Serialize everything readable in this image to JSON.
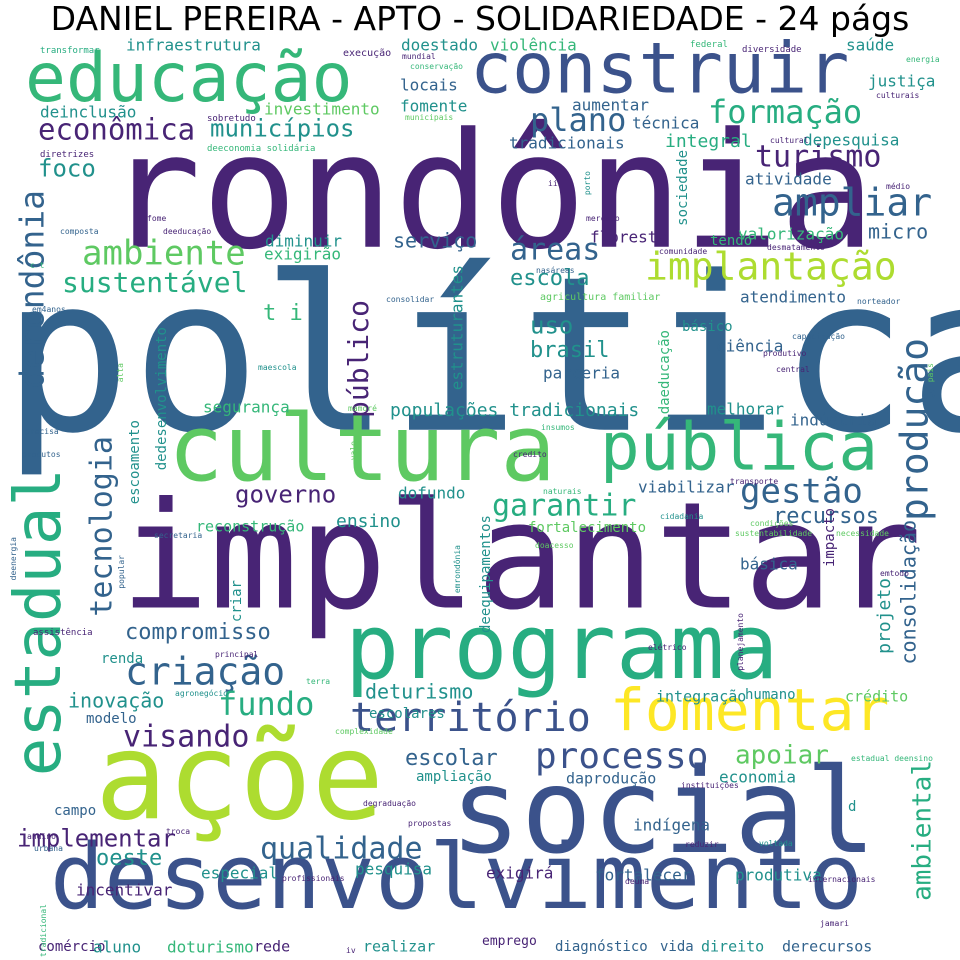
{
  "title": "DANIEL PEREIRA - APTO - SOLIDARIEDADE - 24 págs",
  "palette": {
    "dark_purple": "#482475",
    "indigo": "#3b528b",
    "blue": "#33638d",
    "teal": "#21918c",
    "green_teal": "#27ad81",
    "green": "#35b779",
    "light_green": "#5ec962",
    "lime": "#addc30",
    "yellow": "#fde725"
  },
  "words": [
    {
      "text": "política",
      "color": "blue"
    },
    {
      "text": "rondônia",
      "color": "dark_purple"
    },
    {
      "text": "implantar",
      "color": "dark_purple"
    },
    {
      "text": "açõe",
      "color": "lime"
    },
    {
      "text": "social",
      "color": "indigo"
    },
    {
      "text": "desenvolvimento",
      "color": "indigo"
    },
    {
      "text": "cultura",
      "color": "light_green"
    },
    {
      "text": "programa",
      "color": "green_teal"
    },
    {
      "text": "construir",
      "color": "indigo"
    },
    {
      "text": "educação",
      "color": "green"
    },
    {
      "text": "pública",
      "color": "green"
    },
    {
      "text": "estadual",
      "color": "green_teal"
    },
    {
      "text": "fomentar",
      "color": "yellow"
    },
    {
      "text": "implantação",
      "color": "lime"
    },
    {
      "text": "produção",
      "color": "blue"
    },
    {
      "text": "território",
      "color": "indigo"
    },
    {
      "text": "criação",
      "color": "blue"
    },
    {
      "text": "ampliar",
      "color": "blue"
    },
    {
      "text": "derondônia",
      "color": "blue"
    },
    {
      "text": "processo",
      "color": "indigo"
    },
    {
      "text": "formação",
      "color": "green_teal"
    },
    {
      "text": "ambiente",
      "color": "light_green"
    },
    {
      "text": "econômica",
      "color": "dark_purple"
    },
    {
      "text": "plano",
      "color": "blue"
    },
    {
      "text": "turismo",
      "color": "dark_purple"
    },
    {
      "text": "gestão",
      "color": "blue"
    },
    {
      "text": "sustentável",
      "color": "green_teal"
    },
    {
      "text": "áreas",
      "color": "blue"
    },
    {
      "text": "garantir",
      "color": "green_teal"
    },
    {
      "text": "tecnologia",
      "color": "blue"
    },
    {
      "text": "público",
      "color": "dark_purple"
    },
    {
      "text": "qualidade",
      "color": "blue"
    },
    {
      "text": "fundo",
      "color": "green_teal"
    },
    {
      "text": "visando",
      "color": "dark_purple"
    },
    {
      "text": "municípios",
      "color": "teal"
    },
    {
      "text": "governo",
      "color": "dark_purple"
    },
    {
      "text": "recursos",
      "color": "blue"
    },
    {
      "text": "ambiental",
      "color": "green_teal"
    },
    {
      "text": "consolidação",
      "color": "blue"
    },
    {
      "text": "compromisso",
      "color": "blue"
    },
    {
      "text": "implementar",
      "color": "dark_purple"
    },
    {
      "text": "apoiar",
      "color": "light_green"
    },
    {
      "text": "escola",
      "color": "teal"
    },
    {
      "text": "brasil",
      "color": "teal"
    },
    {
      "text": "uso",
      "color": "teal"
    },
    {
      "text": "deturismo",
      "color": "teal"
    },
    {
      "text": "oeste",
      "color": "teal"
    },
    {
      "text": "escolar",
      "color": "blue"
    },
    {
      "text": "foco",
      "color": "teal"
    },
    {
      "text": "serviço",
      "color": "blue"
    },
    {
      "text": "ensino",
      "color": "teal"
    },
    {
      "text": "inovação",
      "color": "teal"
    },
    {
      "text": "micro",
      "color": "blue"
    },
    {
      "text": "t i",
      "color": "green"
    },
    {
      "text": "projeto",
      "color": "teal"
    },
    {
      "text": "populações tradicionais",
      "color": "teal"
    },
    {
      "text": "infraestrutura",
      "color": "teal"
    },
    {
      "text": "doestado",
      "color": "teal"
    },
    {
      "text": "violência",
      "color": "green"
    },
    {
      "text": "saúde",
      "color": "teal"
    },
    {
      "text": "justiça",
      "color": "teal"
    },
    {
      "text": "investimento",
      "color": "light_green"
    },
    {
      "text": "deinclusão",
      "color": "teal"
    },
    {
      "text": "locais",
      "color": "blue"
    },
    {
      "text": "fomente",
      "color": "teal"
    },
    {
      "text": "aumentar",
      "color": "blue"
    },
    {
      "text": "técnica",
      "color": "blue"
    },
    {
      "text": "tradicionais",
      "color": "blue"
    },
    {
      "text": "integral",
      "color": "green_teal"
    },
    {
      "text": "depesquisa",
      "color": "teal"
    },
    {
      "text": "atividade",
      "color": "blue"
    },
    {
      "text": "sociedade",
      "color": "teal"
    },
    {
      "text": "floresta",
      "color": "dark_purple"
    },
    {
      "text": "valorização",
      "color": "green"
    },
    {
      "text": "tendo",
      "color": "green"
    },
    {
      "text": "diminuir",
      "color": "teal"
    },
    {
      "text": "exigirão",
      "color": "green"
    },
    {
      "text": "estruturantes",
      "color": "teal"
    },
    {
      "text": "atendimento",
      "color": "blue"
    },
    {
      "text": "básico",
      "color": "teal"
    },
    {
      "text": "ciência",
      "color": "blue"
    },
    {
      "text": "parceria",
      "color": "blue"
    },
    {
      "text": "segurança",
      "color": "green"
    },
    {
      "text": "melhorar",
      "color": "teal"
    },
    {
      "text": "indústria",
      "color": "blue"
    },
    {
      "text": "dedesenvolvimento",
      "color": "teal"
    },
    {
      "text": "escoamento",
      "color": "teal"
    },
    {
      "text": "dofundo",
      "color": "teal"
    },
    {
      "text": "viabilizar",
      "color": "blue"
    },
    {
      "text": "reconstrução",
      "color": "green"
    },
    {
      "text": "fortalecimento",
      "color": "light_green"
    },
    {
      "text": "criar",
      "color": "teal"
    },
    {
      "text": "deequipamentos",
      "color": "teal"
    },
    {
      "text": "básica",
      "color": "blue"
    },
    {
      "text": "impacto",
      "color": "dark_purple"
    },
    {
      "text": "renda",
      "color": "teal"
    },
    {
      "text": "integração",
      "color": "teal"
    },
    {
      "text": "humano",
      "color": "teal"
    },
    {
      "text": "crédito",
      "color": "light_green"
    },
    {
      "text": "modelo",
      "color": "blue"
    },
    {
      "text": "escolares",
      "color": "teal"
    },
    {
      "text": "ampliação",
      "color": "teal"
    },
    {
      "text": "daprodução",
      "color": "blue"
    },
    {
      "text": "economia",
      "color": "teal"
    },
    {
      "text": "campo",
      "color": "blue"
    },
    {
      "text": "indígena",
      "color": "blue"
    },
    {
      "text": "especial",
      "color": "teal"
    },
    {
      "text": "pesquisa",
      "color": "teal"
    },
    {
      "text": "exigirá",
      "color": "dark_purple"
    },
    {
      "text": "fortalecer",
      "color": "blue"
    },
    {
      "text": "produtiva",
      "color": "teal"
    },
    {
      "text": "incentivar",
      "color": "dark_purple"
    },
    {
      "text": "comércio",
      "color": "dark_purple"
    },
    {
      "text": "aluno",
      "color": "teal"
    },
    {
      "text": "doturismo",
      "color": "green"
    },
    {
      "text": "rede",
      "color": "dark_purple"
    },
    {
      "text": "realizar",
      "color": "teal"
    },
    {
      "text": "emprego",
      "color": "dark_purple"
    },
    {
      "text": "diagnóstico",
      "color": "blue"
    },
    {
      "text": "vida",
      "color": "blue"
    },
    {
      "text": "direito",
      "color": "teal"
    },
    {
      "text": "derecursos",
      "color": "blue"
    },
    {
      "text": "daeducação",
      "color": "green"
    },
    {
      "text": "d",
      "color": "teal"
    },
    {
      "text": "transformar",
      "color": "green_teal"
    },
    {
      "text": "execução",
      "color": "dark_purple"
    },
    {
      "text": "federal",
      "color": "green"
    },
    {
      "text": "diversidade",
      "color": "dark_purple"
    },
    {
      "text": "energia",
      "color": "green"
    },
    {
      "text": "mundial",
      "color": "dark_purple"
    },
    {
      "text": "conservação",
      "color": "green"
    },
    {
      "text": "culturais",
      "color": "dark_purple"
    },
    {
      "text": "sobretudo",
      "color": "dark_purple"
    },
    {
      "text": "municipais",
      "color": "light_green"
    },
    {
      "text": "deeconomia solidária",
      "color": "green"
    },
    {
      "text": "cultural",
      "color": "dark_purple"
    },
    {
      "text": "diretrizes",
      "color": "dark_purple"
    },
    {
      "text": "médio",
      "color": "dark_purple"
    },
    {
      "text": "iii",
      "color": "dark_purple"
    },
    {
      "text": "porto",
      "color": "teal"
    },
    {
      "text": "fome",
      "color": "dark_purple"
    },
    {
      "text": "mercado",
      "color": "dark_purple"
    },
    {
      "text": "composta",
      "color": "blue"
    },
    {
      "text": "deeducação",
      "color": "dark_purple"
    },
    {
      "text": "comunidade",
      "color": "dark_purple"
    },
    {
      "text": "desmatamento",
      "color": "dark_purple"
    },
    {
      "text": "c t",
      "color": "green"
    },
    {
      "text": "nasáreas",
      "color": "blue"
    },
    {
      "text": "consolidar",
      "color": "blue"
    },
    {
      "text": "agricultura familiar",
      "color": "light_green"
    },
    {
      "text": "norteador",
      "color": "blue"
    },
    {
      "text": "em4anos",
      "color": "blue"
    },
    {
      "text": "capacitação",
      "color": "blue"
    },
    {
      "text": "produtivo",
      "color": "dark_purple"
    },
    {
      "text": "país",
      "color": "light_green"
    },
    {
      "text": "alta",
      "color": "light_green"
    },
    {
      "text": "maescola",
      "color": "teal"
    },
    {
      "text": "central",
      "color": "dark_purple"
    },
    {
      "text": "mamoré",
      "color": "light_green"
    },
    {
      "text": "precisa",
      "color": "blue"
    },
    {
      "text": "insumos",
      "color": "green"
    },
    {
      "text": "vale",
      "color": "light_green"
    },
    {
      "text": "credito",
      "color": "dark_purple"
    },
    {
      "text": "produtos",
      "color": "blue"
    },
    {
      "text": "naturais",
      "color": "green"
    },
    {
      "text": "transporte",
      "color": "dark_purple"
    },
    {
      "text": "cidadania",
      "color": "teal"
    },
    {
      "text": "secretaria",
      "color": "blue"
    },
    {
      "text": "sustentabilidade",
      "color": "light_green"
    },
    {
      "text": "condições",
      "color": "light_green"
    },
    {
      "text": "necessidade",
      "color": "light_green"
    },
    {
      "text": "deenergia",
      "color": "blue"
    },
    {
      "text": "popular",
      "color": "blue"
    },
    {
      "text": "emrondônia",
      "color": "teal"
    },
    {
      "text": "doacesso",
      "color": "light_green"
    },
    {
      "text": "emtodo",
      "color": "dark_purple"
    },
    {
      "text": "planejamento",
      "color": "dark_purple"
    },
    {
      "text": "assistência",
      "color": "dark_purple"
    },
    {
      "text": "principal",
      "color": "dark_purple"
    },
    {
      "text": "elétrico",
      "color": "dark_purple"
    },
    {
      "text": "terra",
      "color": "green"
    },
    {
      "text": "agronegócio",
      "color": "teal"
    },
    {
      "text": "complexidade",
      "color": "light_green"
    },
    {
      "text": "estadual deensino",
      "color": "green"
    },
    {
      "text": "instituições",
      "color": "dark_purple"
    },
    {
      "text": "degraduação",
      "color": "dark_purple"
    },
    {
      "text": "propostas",
      "color": "dark_purple"
    },
    {
      "text": "andino",
      "color": "dark_purple"
    },
    {
      "text": "troca",
      "color": "dark_purple"
    },
    {
      "text": "reduzir",
      "color": "dark_purple"
    },
    {
      "text": "voltada",
      "color": "teal"
    },
    {
      "text": "urbana",
      "color": "blue"
    },
    {
      "text": "tradicional",
      "color": "green"
    },
    {
      "text": "profissionais",
      "color": "dark_purple"
    },
    {
      "text": "deuma",
      "color": "dark_purple"
    },
    {
      "text": "internacionais",
      "color": "dark_purple"
    },
    {
      "text": "jamari",
      "color": "dark_purple"
    },
    {
      "text": "iv",
      "color": "dark_purple"
    }
  ]
}
